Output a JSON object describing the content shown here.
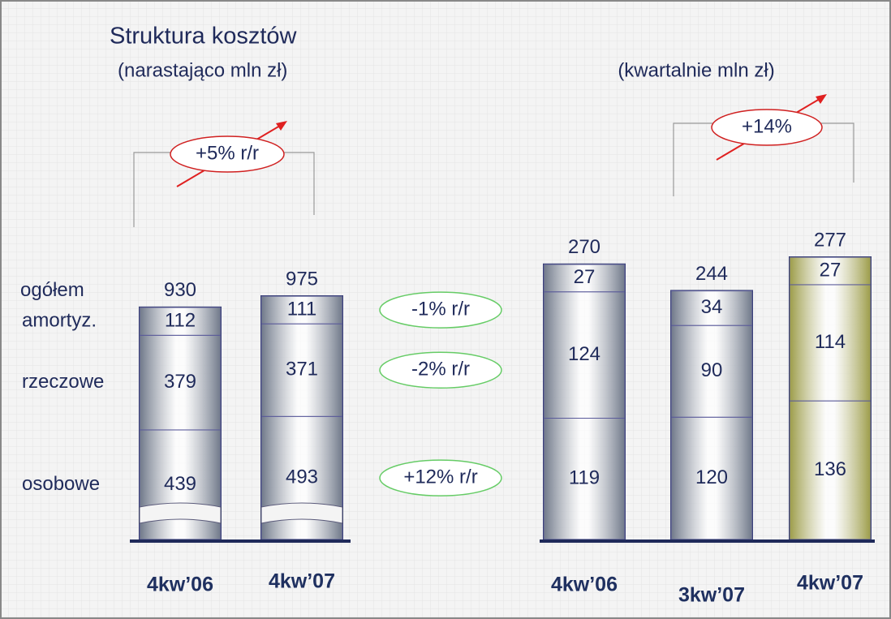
{
  "chart_data": [
    {
      "type": "stacked_bar",
      "title": "Struktura kosztów",
      "subtitle": "(narastająco mln zł)",
      "categories": [
        "4kw’06",
        "4kw’07"
      ],
      "series": [
        {
          "name": "osobowe",
          "values": [
            439,
            493
          ]
        },
        {
          "name": "rzeczowe",
          "values": [
            379,
            371
          ]
        },
        {
          "name": "amortyz.",
          "values": [
            112,
            111
          ]
        }
      ],
      "total_label": "ogółem",
      "totals": [
        930,
        975
      ],
      "color": "#6f7889",
      "growth": "+5% r/r",
      "series_changes": [
        "+12% r/r",
        "-2% r/r",
        "-1% r/r"
      ]
    },
    {
      "type": "stacked_bar",
      "subtitle": "(kwartalnie mln zł)",
      "categories": [
        "4kw’06",
        "3kw’07",
        "4kw’07"
      ],
      "series": [
        {
          "values": [
            119,
            120,
            136
          ]
        },
        {
          "values": [
            124,
            90,
            114
          ]
        },
        {
          "values": [
            27,
            34,
            27
          ]
        }
      ],
      "totals": [
        270,
        244,
        277
      ],
      "colors": [
        "#6f7889",
        "#6f7889",
        "#9c9c48"
      ],
      "growth": "+14%"
    }
  ]
}
